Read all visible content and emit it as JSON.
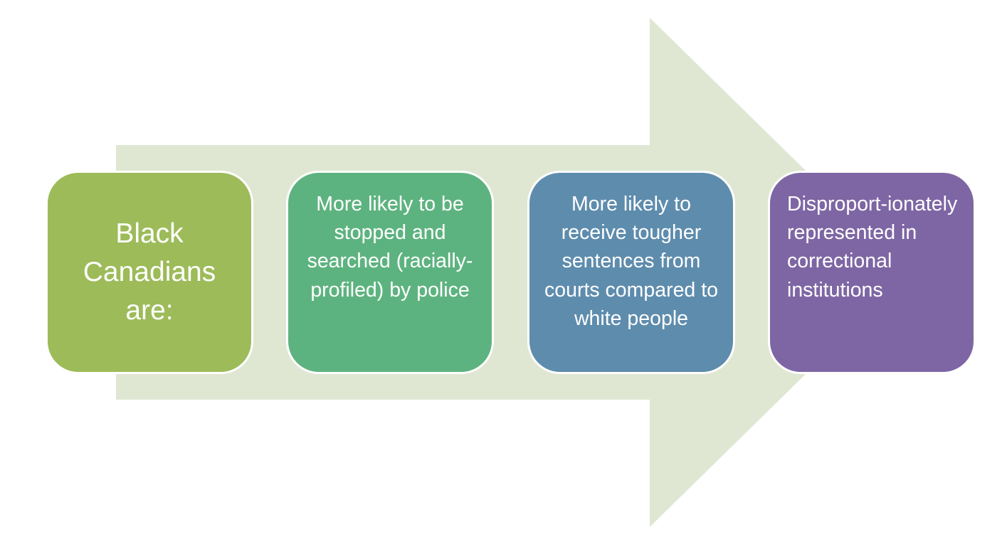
{
  "colors": {
    "arrow": "#dfe7d3",
    "box_1": "#9dbb59",
    "box_2": "#5db37f",
    "box_3": "#5e8cad",
    "box_4": "#7e66a4",
    "text": "#ffffff"
  },
  "steps": [
    {
      "text": "Black Canadians are:"
    },
    {
      "text": "More likely to be stopped and searched (racially-profiled) by police"
    },
    {
      "text": "More likely to receive tougher sentences from courts compared to white people"
    },
    {
      "text": "Disproport-ionately represented in correctional institutions"
    }
  ]
}
